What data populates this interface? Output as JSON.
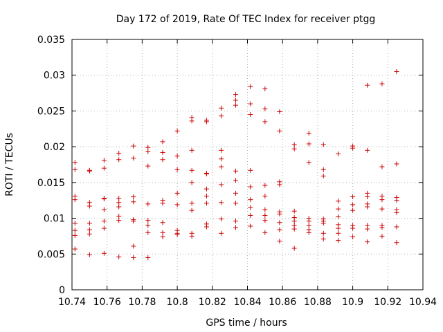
{
  "chart_data": {
    "type": "scatter",
    "title": "Day 172 of 2019, Rate Of TEC Index for receiver ptgg",
    "xlabel": "GPS time / hours",
    "ylabel": "ROTI / TECUs",
    "xlim": [
      10.74,
      10.94
    ],
    "ylim": [
      0,
      0.035
    ],
    "xticks": [
      10.74,
      10.76,
      10.78,
      10.8,
      10.82,
      10.84,
      10.86,
      10.88,
      10.9,
      10.92,
      10.94
    ],
    "xtick_labels": [
      "10.74",
      "10.76",
      "10.78",
      "10.8",
      "10.82",
      "10.84",
      "10.86",
      "10.88",
      "10.9",
      "10.92",
      "10.94"
    ],
    "yticks": [
      0,
      0.005,
      0.01,
      0.015,
      0.02,
      0.025,
      0.03,
      0.035
    ],
    "ytick_labels": [
      "0",
      "0.005",
      "0.01",
      "0.015",
      "0.02",
      "0.025",
      "0.03",
      "0.035"
    ],
    "grid": true,
    "marker": "+",
    "color": "#cc0000",
    "series": [
      {
        "name": "ROTI",
        "points": [
          [
            10.7417,
            0.0178
          ],
          [
            10.7417,
            0.0168
          ],
          [
            10.7417,
            0.0131
          ],
          [
            10.7417,
            0.0126
          ],
          [
            10.7417,
            0.0093
          ],
          [
            10.7417,
            0.0083
          ],
          [
            10.7417,
            0.0076
          ],
          [
            10.7417,
            0.0057
          ],
          [
            10.75,
            0.0167
          ],
          [
            10.75,
            0.0166
          ],
          [
            10.75,
            0.0122
          ],
          [
            10.75,
            0.0117
          ],
          [
            10.75,
            0.0093
          ],
          [
            10.75,
            0.0084
          ],
          [
            10.75,
            0.0078
          ],
          [
            10.75,
            0.0049
          ],
          [
            10.7583,
            0.0181
          ],
          [
            10.7583,
            0.017
          ],
          [
            10.7583,
            0.0128
          ],
          [
            10.7583,
            0.0127
          ],
          [
            10.7583,
            0.0112
          ],
          [
            10.7583,
            0.0096
          ],
          [
            10.7583,
            0.0086
          ],
          [
            10.7583,
            0.0051
          ],
          [
            10.7667,
            0.0191
          ],
          [
            10.7667,
            0.0182
          ],
          [
            10.7667,
            0.0128
          ],
          [
            10.7667,
            0.0122
          ],
          [
            10.7667,
            0.0116
          ],
          [
            10.7667,
            0.0103
          ],
          [
            10.7667,
            0.0097
          ],
          [
            10.7667,
            0.0046
          ],
          [
            10.775,
            0.0201
          ],
          [
            10.775,
            0.0184
          ],
          [
            10.775,
            0.013
          ],
          [
            10.775,
            0.0123
          ],
          [
            10.775,
            0.0098
          ],
          [
            10.775,
            0.0096
          ],
          [
            10.775,
            0.0061
          ],
          [
            10.775,
            0.0045
          ],
          [
            10.7833,
            0.0199
          ],
          [
            10.7833,
            0.0193
          ],
          [
            10.7833,
            0.0173
          ],
          [
            10.7833,
            0.012
          ],
          [
            10.7833,
            0.0097
          ],
          [
            10.7833,
            0.009
          ],
          [
            10.7833,
            0.008
          ],
          [
            10.7833,
            0.0045
          ],
          [
            10.7917,
            0.0207
          ],
          [
            10.7917,
            0.0192
          ],
          [
            10.7917,
            0.0182
          ],
          [
            10.7917,
            0.0125
          ],
          [
            10.7917,
            0.0121
          ],
          [
            10.7917,
            0.0094
          ],
          [
            10.7917,
            0.008
          ],
          [
            10.7917,
            0.0074
          ],
          [
            10.8,
            0.0222
          ],
          [
            10.8,
            0.0187
          ],
          [
            10.8,
            0.0168
          ],
          [
            10.8,
            0.0135
          ],
          [
            10.8,
            0.0119
          ],
          [
            10.8,
            0.0083
          ],
          [
            10.8,
            0.0079
          ],
          [
            10.8,
            0.0077
          ],
          [
            10.8083,
            0.0241
          ],
          [
            10.8083,
            0.0236
          ],
          [
            10.8083,
            0.0195
          ],
          [
            10.8083,
            0.0167
          ],
          [
            10.8083,
            0.015
          ],
          [
            10.8083,
            0.0121
          ],
          [
            10.8083,
            0.0111
          ],
          [
            10.8083,
            0.0079
          ],
          [
            10.8083,
            0.0075
          ],
          [
            10.8167,
            0.0237
          ],
          [
            10.8167,
            0.0235
          ],
          [
            10.8167,
            0.0163
          ],
          [
            10.8167,
            0.0162
          ],
          [
            10.8167,
            0.0141
          ],
          [
            10.8167,
            0.0131
          ],
          [
            10.8167,
            0.0121
          ],
          [
            10.8167,
            0.0092
          ],
          [
            10.8167,
            0.0088
          ],
          [
            10.825,
            0.0254
          ],
          [
            10.825,
            0.0243
          ],
          [
            10.825,
            0.0195
          ],
          [
            10.825,
            0.0183
          ],
          [
            10.825,
            0.0172
          ],
          [
            10.825,
            0.0147
          ],
          [
            10.825,
            0.0122
          ],
          [
            10.825,
            0.0099
          ],
          [
            10.825,
            0.0079
          ],
          [
            10.8333,
            0.0273
          ],
          [
            10.8333,
            0.0265
          ],
          [
            10.8333,
            0.0258
          ],
          [
            10.8333,
            0.0166
          ],
          [
            10.8333,
            0.0153
          ],
          [
            10.8333,
            0.0135
          ],
          [
            10.8333,
            0.0121
          ],
          [
            10.8333,
            0.0096
          ],
          [
            10.8333,
            0.0087
          ],
          [
            10.8417,
            0.0284
          ],
          [
            10.8417,
            0.026
          ],
          [
            10.8417,
            0.0245
          ],
          [
            10.8417,
            0.0167
          ],
          [
            10.8417,
            0.0144
          ],
          [
            10.8417,
            0.0126
          ],
          [
            10.8417,
            0.0115
          ],
          [
            10.8417,
            0.0104
          ],
          [
            10.8417,
            0.0089
          ],
          [
            10.85,
            0.0281
          ],
          [
            10.85,
            0.0253
          ],
          [
            10.85,
            0.0235
          ],
          [
            10.85,
            0.0146
          ],
          [
            10.85,
            0.0131
          ],
          [
            10.85,
            0.0112
          ],
          [
            10.85,
            0.0104
          ],
          [
            10.85,
            0.0097
          ],
          [
            10.85,
            0.008
          ],
          [
            10.8583,
            0.0249
          ],
          [
            10.8583,
            0.0222
          ],
          [
            10.8583,
            0.0151
          ],
          [
            10.8583,
            0.0147
          ],
          [
            10.8583,
            0.0109
          ],
          [
            10.8583,
            0.0106
          ],
          [
            10.8583,
            0.0094
          ],
          [
            10.8583,
            0.0084
          ],
          [
            10.8583,
            0.0068
          ],
          [
            10.8667,
            0.0203
          ],
          [
            10.8667,
            0.0197
          ],
          [
            10.8667,
            0.011
          ],
          [
            10.8667,
            0.0101
          ],
          [
            10.8667,
            0.0096
          ],
          [
            10.8667,
            0.009
          ],
          [
            10.8667,
            0.0085
          ],
          [
            10.8667,
            0.0058
          ],
          [
            10.875,
            0.0219
          ],
          [
            10.875,
            0.0204
          ],
          [
            10.875,
            0.0178
          ],
          [
            10.875,
            0.01
          ],
          [
            10.875,
            0.0096
          ],
          [
            10.875,
            0.009
          ],
          [
            10.875,
            0.0084
          ],
          [
            10.875,
            0.008
          ],
          [
            10.8833,
            0.0203
          ],
          [
            10.8833,
            0.0168
          ],
          [
            10.8833,
            0.0159
          ],
          [
            10.8833,
            0.0099
          ],
          [
            10.8833,
            0.0096
          ],
          [
            10.8833,
            0.0093
          ],
          [
            10.8833,
            0.0079
          ],
          [
            10.8833,
            0.0071
          ],
          [
            10.8917,
            0.019
          ],
          [
            10.8917,
            0.0124
          ],
          [
            10.8917,
            0.0113
          ],
          [
            10.8917,
            0.0102
          ],
          [
            10.8917,
            0.0091
          ],
          [
            10.8917,
            0.0086
          ],
          [
            10.8917,
            0.0079
          ],
          [
            10.8917,
            0.0069
          ],
          [
            10.9,
            0.0201
          ],
          [
            10.9,
            0.0198
          ],
          [
            10.9,
            0.013
          ],
          [
            10.9,
            0.0119
          ],
          [
            10.9,
            0.0111
          ],
          [
            10.9,
            0.009
          ],
          [
            10.9,
            0.0086
          ],
          [
            10.9,
            0.0074
          ],
          [
            10.9083,
            0.0286
          ],
          [
            10.9083,
            0.0195
          ],
          [
            10.9083,
            0.0135
          ],
          [
            10.9083,
            0.013
          ],
          [
            10.9083,
            0.012
          ],
          [
            10.9083,
            0.0116
          ],
          [
            10.9083,
            0.009
          ],
          [
            10.9083,
            0.0085
          ],
          [
            10.9083,
            0.0067
          ],
          [
            10.9167,
            0.0288
          ],
          [
            10.9167,
            0.0172
          ],
          [
            10.9167,
            0.0131
          ],
          [
            10.9167,
            0.0126
          ],
          [
            10.9167,
            0.0113
          ],
          [
            10.9167,
            0.009
          ],
          [
            10.9167,
            0.0087
          ],
          [
            10.9167,
            0.0075
          ],
          [
            10.925,
            0.0305
          ],
          [
            10.925,
            0.0176
          ],
          [
            10.925,
            0.0129
          ],
          [
            10.925,
            0.0125
          ],
          [
            10.925,
            0.0112
          ],
          [
            10.925,
            0.0108
          ],
          [
            10.925,
            0.0088
          ],
          [
            10.925,
            0.0066
          ]
        ]
      }
    ]
  }
}
